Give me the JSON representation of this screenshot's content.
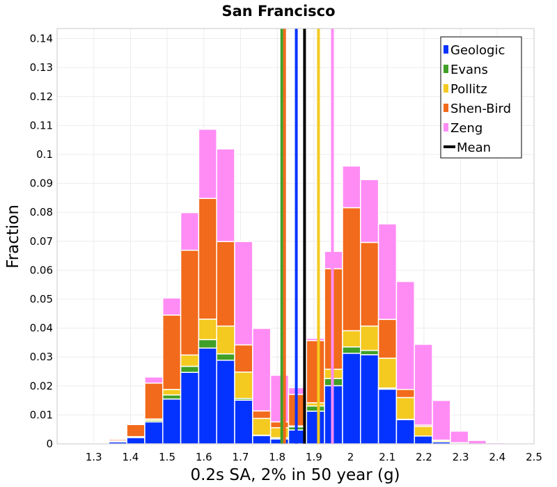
{
  "chart_data": {
    "type": "bar",
    "stacked": true,
    "title": "San Francisco",
    "xlabel": "0.2s SA, 2% in 50 year (g)",
    "ylabel": "Fraction",
    "xlim": [
      1.2,
      2.5
    ],
    "ylim": [
      0,
      0.1435
    ],
    "xticks": [
      1.3,
      1.4,
      1.5,
      1.6,
      1.7,
      1.8,
      1.9,
      2.0,
      2.1,
      2.2,
      2.3,
      2.4,
      2.5
    ],
    "xtick_labels": [
      "1.3",
      "1.4",
      "1.5",
      "1.6",
      "1.7",
      "1.8",
      "1.9",
      "2",
      "2.1",
      "2.2",
      "2.3",
      "2.4",
      "2.5"
    ],
    "yticks": [
      0,
      0.01,
      0.02,
      0.03,
      0.04,
      0.05,
      0.06,
      0.07,
      0.08,
      0.09,
      0.1,
      0.11,
      0.12,
      0.13,
      0.14
    ],
    "ytick_labels": [
      "0",
      "0.01",
      "0.02",
      "0.03",
      "0.04",
      "0.05",
      "0.06",
      "0.07",
      "0.08",
      "0.09",
      "0.1",
      "0.11",
      "0.12",
      "0.13",
      "0.14"
    ],
    "bin_width": 0.049,
    "bins": [
      1.2675,
      1.3165,
      1.3655,
      1.4145,
      1.4635,
      1.5125,
      1.5615,
      1.6105,
      1.6595,
      1.7085,
      1.7575,
      1.8065,
      1.8555,
      1.9045,
      1.9535,
      2.0025,
      2.0515,
      2.1005,
      2.1495,
      2.1985,
      2.2475,
      2.2965,
      2.3455,
      2.3945,
      2.4435
    ],
    "series": [
      {
        "name": "Geologic",
        "color": "#0433ff",
        "values": [
          0,
          0.0001,
          0.0007,
          0.0022,
          0.0076,
          0.0155,
          0.0247,
          0.0331,
          0.0289,
          0.0151,
          0.0029,
          0.0017,
          0.0048,
          0.0113,
          0.0201,
          0.0313,
          0.0308,
          0.0189,
          0.0084,
          0.0027,
          0.0007,
          0.0002,
          0,
          0,
          0
        ]
      },
      {
        "name": "Evans",
        "color": "#3f9f26",
        "values": [
          0,
          0,
          0.0001,
          0.0001,
          0.0005,
          0.0014,
          0.0021,
          0.0029,
          0.0022,
          0.0006,
          0.0001,
          0.0004,
          0.0011,
          0.0018,
          0.0025,
          0.0022,
          0.0015,
          0.0004,
          0.0001,
          0,
          0,
          0,
          0,
          0,
          0
        ]
      },
      {
        "name": "Pollitz",
        "color": "#f4c920",
        "values": [
          0,
          0.0001,
          0.0002,
          0.0002,
          0.0005,
          0.0019,
          0.0039,
          0.0071,
          0.0096,
          0.0091,
          0.0058,
          0.0035,
          0.0003,
          0.0011,
          0.0032,
          0.0056,
          0.0084,
          0.0103,
          0.0075,
          0.0033,
          0.0005,
          0.0002,
          0,
          0,
          0
        ]
      },
      {
        "name": "Shen-Bird",
        "color": "#f26a1b",
        "values": [
          0,
          0.0001,
          0.0005,
          0.0042,
          0.0124,
          0.0257,
          0.0362,
          0.0417,
          0.0292,
          0.0094,
          0.0026,
          0.002,
          0.0109,
          0.0215,
          0.0347,
          0.0425,
          0.0289,
          0.0134,
          0.0028,
          0.0005,
          0.0001,
          0,
          0,
          0,
          0
        ]
      },
      {
        "name": "Zeng",
        "color": "#ff8cf5",
        "values": [
          0.0001,
          0.0001,
          0.0001,
          0.0001,
          0.0021,
          0.0059,
          0.013,
          0.0239,
          0.032,
          0.0357,
          0.0285,
          0.0161,
          0.0023,
          0.0008,
          0.006,
          0.0144,
          0.0217,
          0.033,
          0.0373,
          0.0279,
          0.0137,
          0.004,
          0.0012,
          0.0004,
          0.0001
        ]
      }
    ],
    "mean_lines": [
      {
        "series": "Evans",
        "x": 1.8125
      },
      {
        "series": "Shen-Bird",
        "x": 1.82
      },
      {
        "series": "Geologic",
        "x": 1.852
      },
      {
        "series": "Pollitz",
        "x": 1.9125
      },
      {
        "series": "Zeng",
        "x": 1.9505
      },
      {
        "series": "Mean",
        "x": 1.8745
      }
    ],
    "legend": {
      "position": "top-right",
      "entries": [
        {
          "label": "Geologic",
          "color": "#0433ff",
          "style": "box"
        },
        {
          "label": "Evans",
          "color": "#3f9f26",
          "style": "box"
        },
        {
          "label": "Pollitz",
          "color": "#f4c920",
          "style": "box"
        },
        {
          "label": "Shen-Bird",
          "color": "#f26a1b",
          "style": "box"
        },
        {
          "label": "Zeng",
          "color": "#ff8cf5",
          "style": "box"
        },
        {
          "label": "Mean",
          "color": "#000000",
          "style": "line"
        }
      ]
    },
    "grid": true
  }
}
